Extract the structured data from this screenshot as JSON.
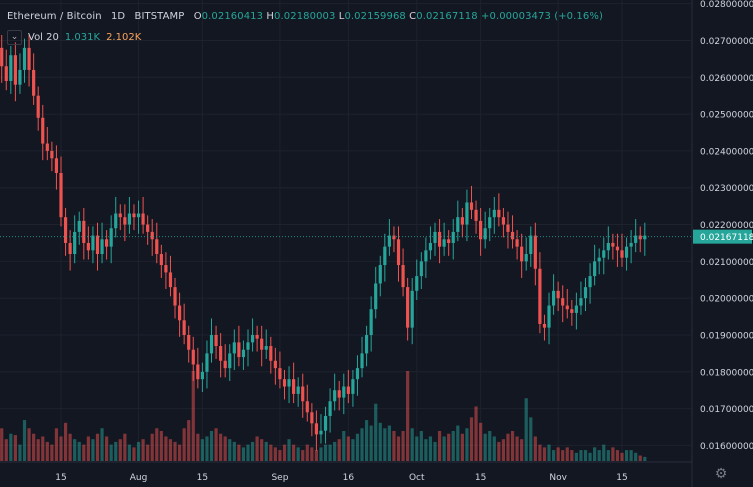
{
  "header": {
    "symbol": "Ethereum / Bitcoin",
    "interval": "1D",
    "exchange": "BITSTAMP",
    "open_label": "O",
    "open": "0.02160413",
    "high_label": "H",
    "high": "0.02180003",
    "low_label": "L",
    "low": "0.02159968",
    "close_label": "C",
    "close": "0.02167118",
    "change": "+0.00003473 (+0.16%)"
  },
  "volume": {
    "chevron": "⌄",
    "label": "Vol 20",
    "value1": "1.031K",
    "value2": "2.102K"
  },
  "settings_icon": "gear-icon",
  "colors": {
    "background": "#131722",
    "up": "#26a69a",
    "down": "#ef5350",
    "grid": "#1e222d",
    "axis_text": "#d1d4dc",
    "price_tag": "#26a69a"
  },
  "chart_data": {
    "type": "candlestick",
    "title": "Ethereum / Bitcoin 1D BITSTAMP",
    "y_axis_labels": [
      "0.02800000",
      "0.02700000",
      "0.02600000",
      "0.02500000",
      "0.02400000",
      "0.02300000",
      "0.02200000",
      "0.02100000",
      "0.02000000",
      "0.01900000",
      "0.01800000",
      "0.01700000",
      "0.01600000"
    ],
    "ylim": [
      0.01555,
      0.0281
    ],
    "x_axis_labels": [
      "15",
      "Aug",
      "15",
      "Sep",
      "16",
      "Oct",
      "15",
      "Nov",
      "15"
    ],
    "x_axis_dates": [
      "2020-07-15",
      "2020-08-01",
      "2020-08-15",
      "2020-09-01",
      "2020-09-16",
      "2020-10-01",
      "2020-10-15",
      "2020-11-01",
      "2020-11-15"
    ],
    "start_date": "2020-07-01",
    "last_price": "0.02167118",
    "grid": true,
    "closes": [
      0.0268,
      0.0263,
      0.0259,
      0.0266,
      0.0258,
      0.0262,
      0.0268,
      0.0262,
      0.0255,
      0.0249,
      0.0242,
      0.024,
      0.0238,
      0.0234,
      0.0222,
      0.0215,
      0.0212,
      0.0218,
      0.0221,
      0.0215,
      0.0213,
      0.0217,
      0.0212,
      0.0216,
      0.0214,
      0.0219,
      0.0223,
      0.0222,
      0.022,
      0.0223,
      0.0222,
      0.0223,
      0.022,
      0.0218,
      0.0216,
      0.0212,
      0.0209,
      0.0207,
      0.0203,
      0.0198,
      0.0194,
      0.019,
      0.0186,
      0.0182,
      0.0178,
      0.018,
      0.0185,
      0.019,
      0.0187,
      0.0183,
      0.0181,
      0.0185,
      0.0188,
      0.0184,
      0.0186,
      0.0188,
      0.019,
      0.0189,
      0.0186,
      0.0187,
      0.0183,
      0.0181,
      0.0178,
      0.0176,
      0.0178,
      0.0174,
      0.0176,
      0.0172,
      0.0169,
      0.0166,
      0.0163,
      0.0164,
      0.0168,
      0.0172,
      0.0175,
      0.0173,
      0.0176,
      0.0174,
      0.0178,
      0.0181,
      0.0185,
      0.019,
      0.0197,
      0.0204,
      0.0209,
      0.0214,
      0.0217,
      0.0216,
      0.0209,
      0.0203,
      0.0192,
      0.0202,
      0.0206,
      0.021,
      0.0213,
      0.0215,
      0.0218,
      0.0214,
      0.0216,
      0.0215,
      0.0218,
      0.0222,
      0.022,
      0.0226,
      0.0224,
      0.0221,
      0.0216,
      0.0219,
      0.0222,
      0.0224,
      0.0222,
      0.022,
      0.0218,
      0.0216,
      0.0214,
      0.021,
      0.0212,
      0.0217,
      0.0208,
      0.0193,
      0.0192,
      0.0198,
      0.0202,
      0.02,
      0.0198,
      0.0197,
      0.0196,
      0.0198,
      0.02,
      0.0203,
      0.0206,
      0.021,
      0.0211,
      0.0213,
      0.0215,
      0.0214,
      0.0213,
      0.0211,
      0.0214,
      0.0215,
      0.0217,
      0.0216,
      0.0217
    ],
    "volumes": [
      110,
      120,
      80,
      100,
      95,
      60,
      150,
      120,
      100,
      80,
      90,
      70,
      60,
      120,
      90,
      140,
      100,
      80,
      70,
      60,
      90,
      80,
      100,
      120,
      90,
      60,
      70,
      80,
      100,
      60,
      50,
      70,
      80,
      60,
      100,
      120,
      110,
      90,
      80,
      70,
      60,
      120,
      150,
      330,
      100,
      80,
      90,
      110,
      120,
      100,
      90,
      80,
      70,
      60,
      50,
      60,
      70,
      90,
      80,
      70,
      60,
      50,
      40,
      60,
      80,
      60,
      50,
      40,
      60,
      50,
      40,
      50,
      60,
      60,
      70,
      80,
      110,
      90,
      80,
      100,
      120,
      150,
      130,
      210,
      140,
      120,
      130,
      110,
      90,
      110,
      330,
      120,
      90,
      110,
      80,
      90,
      70,
      110,
      90,
      100,
      110,
      130,
      100,
      120,
      160,
      200,
      140,
      100,
      110,
      90,
      70,
      80,
      100,
      110,
      90,
      80,
      230,
      160,
      90,
      60,
      50,
      60,
      40,
      50,
      40,
      50,
      40,
      30,
      40,
      40,
      30,
      50,
      40,
      60,
      40,
      50,
      40,
      30,
      40,
      40,
      30,
      20,
      15
    ]
  }
}
